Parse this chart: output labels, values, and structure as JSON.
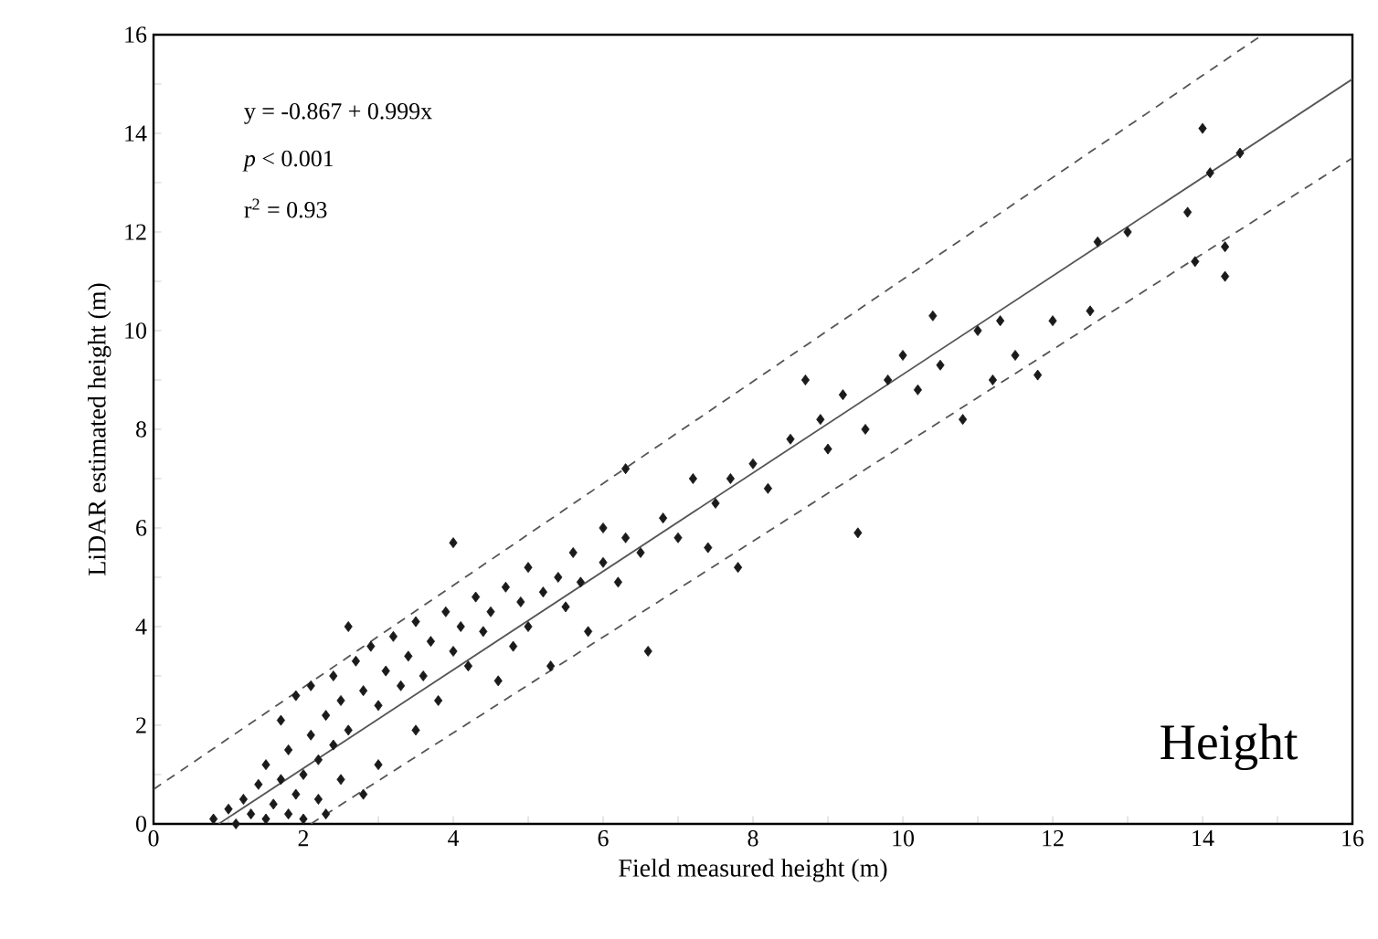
{
  "chart_data": {
    "type": "scatter",
    "xlabel": "Field measured height (m)",
    "ylabel": "LiDAR estimated height (m)",
    "xlim": [
      0,
      16
    ],
    "ylim": [
      0,
      16
    ],
    "xticks": [
      0,
      {
        "value": 1,
        "label": null
      },
      2,
      {
        "value": 3,
        "label": null
      },
      4,
      {
        "value": 5,
        "label": null
      },
      6,
      {
        "value": 7,
        "label": null
      },
      8,
      {
        "value": 9,
        "label": null
      },
      10,
      {
        "value": 11,
        "label": null
      },
      12,
      {
        "value": 13,
        "label": null
      },
      14,
      {
        "value": 15,
        "label": null
      },
      16
    ],
    "yticks": [
      0,
      {
        "value": 1,
        "label": null
      },
      2,
      {
        "value": 3,
        "label": null
      },
      4,
      {
        "value": 5,
        "label": null
      },
      6,
      {
        "value": 7,
        "label": null
      },
      8,
      {
        "value": 9,
        "label": null
      },
      10,
      {
        "value": 11,
        "label": null
      },
      12,
      {
        "value": 13,
        "label": null
      },
      14,
      {
        "value": 15,
        "label": null
      },
      16
    ],
    "annotations": [
      "y = -0.867 + 0.999x",
      "*p* < 0.001",
      "r$^{2}$ = 0.93",
      "Height"
    ],
    "series": [
      {
        "color": "#1a1a1a",
        "marker": "diamond",
        "x": [
          0.8,
          1.0,
          1.1,
          1.2,
          1.3,
          1.4,
          1.5,
          1.5,
          1.6,
          1.7,
          1.7,
          1.8,
          1.8,
          1.9,
          1.9,
          2.0,
          2.0,
          2.1,
          2.1,
          2.2,
          2.2,
          2.3,
          2.3,
          2.4,
          2.4,
          2.5,
          2.5,
          2.6,
          2.6,
          2.7,
          2.8,
          2.8,
          2.9,
          3.0,
          3.0,
          3.1,
          3.2,
          3.3,
          3.4,
          3.5,
          3.5,
          3.6,
          3.7,
          3.8,
          3.9,
          4.0,
          4.0,
          4.1,
          4.2,
          4.3,
          4.4,
          4.5,
          4.6,
          4.7,
          4.8,
          4.9,
          5.0,
          5.0,
          5.2,
          5.3,
          5.4,
          5.5,
          5.6,
          5.7,
          5.8,
          6.0,
          6.0,
          6.2,
          6.3,
          6.3,
          6.5,
          6.6,
          6.8,
          7.0,
          7.2,
          7.4,
          7.5,
          7.7,
          7.8,
          8.0,
          8.2,
          8.5,
          8.7,
          8.9,
          9.0,
          9.2,
          9.4,
          9.5,
          9.8,
          10.0,
          10.2,
          10.4,
          10.5,
          10.8,
          11.0,
          11.2,
          11.3,
          11.5,
          11.8,
          12.0,
          12.5,
          12.6,
          13.0,
          13.8,
          13.9,
          14.0,
          14.1,
          14.3,
          14.3,
          14.5
        ],
        "values": [
          0.1,
          0.3,
          0.0,
          0.5,
          0.2,
          0.8,
          0.1,
          1.2,
          0.4,
          0.9,
          2.1,
          0.2,
          1.5,
          0.6,
          2.6,
          1.0,
          0.1,
          1.8,
          2.8,
          0.5,
          1.3,
          2.2,
          0.2,
          1.6,
          3.0,
          0.9,
          2.5,
          4.0,
          1.9,
          3.3,
          2.7,
          0.6,
          3.6,
          2.4,
          1.2,
          3.1,
          3.8,
          2.8,
          3.4,
          1.9,
          4.1,
          3.0,
          3.7,
          2.5,
          4.3,
          3.5,
          5.7,
          4.0,
          3.2,
          4.6,
          3.9,
          4.3,
          2.9,
          4.8,
          3.6,
          4.5,
          5.2,
          4.0,
          4.7,
          3.2,
          5.0,
          4.4,
          5.5,
          4.9,
          3.9,
          5.3,
          6.0,
          4.9,
          5.8,
          7.2,
          5.5,
          3.5,
          6.2,
          5.8,
          7.0,
          5.6,
          6.5,
          7.0,
          5.2,
          7.3,
          6.8,
          7.8,
          9.0,
          8.2,
          7.6,
          8.7,
          5.9,
          8.0,
          9.0,
          9.5,
          8.8,
          10.3,
          9.3,
          8.2,
          10.0,
          9.0,
          10.2,
          9.5,
          9.1,
          10.2,
          10.4,
          11.8,
          12.0,
          12.4,
          11.4,
          14.1,
          13.2,
          11.7,
          11.1,
          13.6
        ]
      },
      {
        "type": "line",
        "color": "#555555",
        "line_style": "solid",
        "x": [
          0.87,
          16
        ],
        "values": [
          0,
          15.1
        ]
      },
      {
        "type": "line",
        "color": "#555555",
        "line_style": "dashed",
        "x": [
          0,
          14.8
        ],
        "values": [
          0.7,
          16
        ]
      },
      {
        "type": "line",
        "color": "#555555",
        "line_style": "dashed",
        "x": [
          2.1,
          16
        ],
        "values": [
          0,
          13.5
        ]
      }
    ]
  }
}
